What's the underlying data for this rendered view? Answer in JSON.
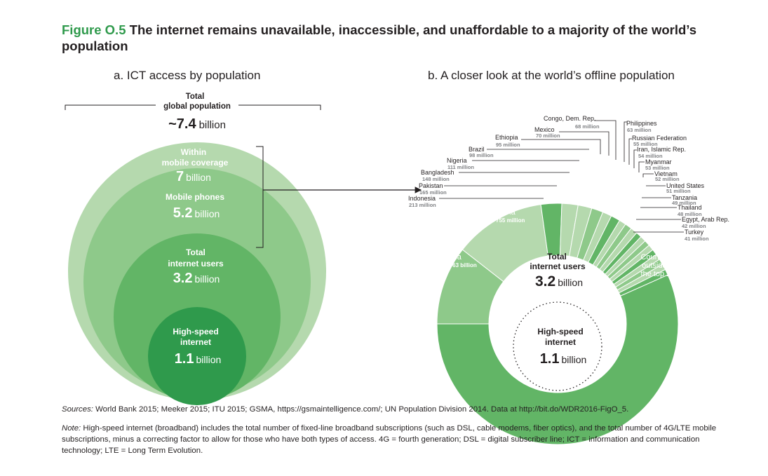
{
  "figure": {
    "number": "Figure O.5",
    "title": "The internet remains unavailable, inaccessible, and unaffordable to a majority of the world’s population"
  },
  "panel_a": {
    "title": "a. ICT access by population",
    "total_label_line1": "Total",
    "total_label_line2": "global population",
    "total_value": "~7.4",
    "total_unit": "billion",
    "rings": [
      {
        "line1": "Within",
        "line2": "mobile coverage",
        "value": "7",
        "unit": "billion",
        "color": "#b5d9ae"
      },
      {
        "line1": "Mobile phones",
        "line2": "",
        "value": "5.2",
        "unit": "billion",
        "color": "#8ec98a"
      },
      {
        "line1": "Total",
        "line2": "internet users",
        "value": "3.2",
        "unit": "billion",
        "color": "#62b566"
      },
      {
        "line1": "High-speed",
        "line2": "internet",
        "value": "1.1",
        "unit": "billion",
        "color": "#2f9a4c"
      }
    ]
  },
  "panel_b": {
    "title": "b. A closer look at the world’s offline population",
    "center_line1": "Total",
    "center_line2": "internet users",
    "center_value": "3.2",
    "center_unit": "billion",
    "inner_line1": "High-speed",
    "inner_line2": "internet",
    "inner_value": "1.1",
    "inner_unit": "billion",
    "india_name": "India",
    "india_value": "1.063 billion",
    "china_name": "China",
    "china_value": "755 million",
    "rest_label_line1": "Countries",
    "rest_label_line2": "outside of",
    "rest_label_line3": "the top 20",
    "left_labels": [
      {
        "name": "Congo, Dem. Rep.",
        "value": "68 million"
      },
      {
        "name": "Mexico",
        "value": "70 million"
      },
      {
        "name": "Ethiopia",
        "value": "95 million"
      },
      {
        "name": "Brazil",
        "value": "98 million"
      },
      {
        "name": "Nigeria",
        "value": "111 million"
      },
      {
        "name": "Bangladesh",
        "value": "148 million"
      },
      {
        "name": "Pakistan",
        "value": "165 million"
      },
      {
        "name": "Indonesia",
        "value": "213 million"
      }
    ],
    "right_labels": [
      {
        "name": "Philippines",
        "value": "63 million"
      },
      {
        "name": "Russian Federation",
        "value": "55 million"
      },
      {
        "name": "Iran, Islamic Rep.",
        "value": "54 million"
      },
      {
        "name": "Myanmar",
        "value": "53 million"
      },
      {
        "name": "Vietnam",
        "value": "52 million"
      },
      {
        "name": "United States",
        "value": "51 million"
      },
      {
        "name": "Tanzania",
        "value": "49 million"
      },
      {
        "name": "Thailand",
        "value": "48 million"
      },
      {
        "name": "Egypt, Arab Rep.",
        "value": "42 million"
      },
      {
        "name": "Turkey",
        "value": "41 million"
      }
    ]
  },
  "sources": {
    "label": "Sources:",
    "text": "World Bank 2015; Meeker 2015; ITU 2015; GSMA, https://gsmaintelligence.com/; UN Population Division 2014. Data at http://bit.do/WDR2016-FigO_5."
  },
  "note": {
    "label": "Note:",
    "text": "High-speed internet (broadband) includes the total number of fixed-line broadband subscriptions (such as DSL, cable modems, fiber optics), and the total number of 4G/LTE mobile subscriptions, minus a correcting factor to allow for those who have both types of access. 4G = fourth generation; DSL = digital subscriber line; ICT = information and communication technology; LTE = Long Term Evolution."
  },
  "colors": {
    "accent": "#2f9a4c",
    "light": "#b5d9ae",
    "mid": "#8ec98a",
    "med": "#62b566",
    "dark": "#2f9a4c"
  }
}
